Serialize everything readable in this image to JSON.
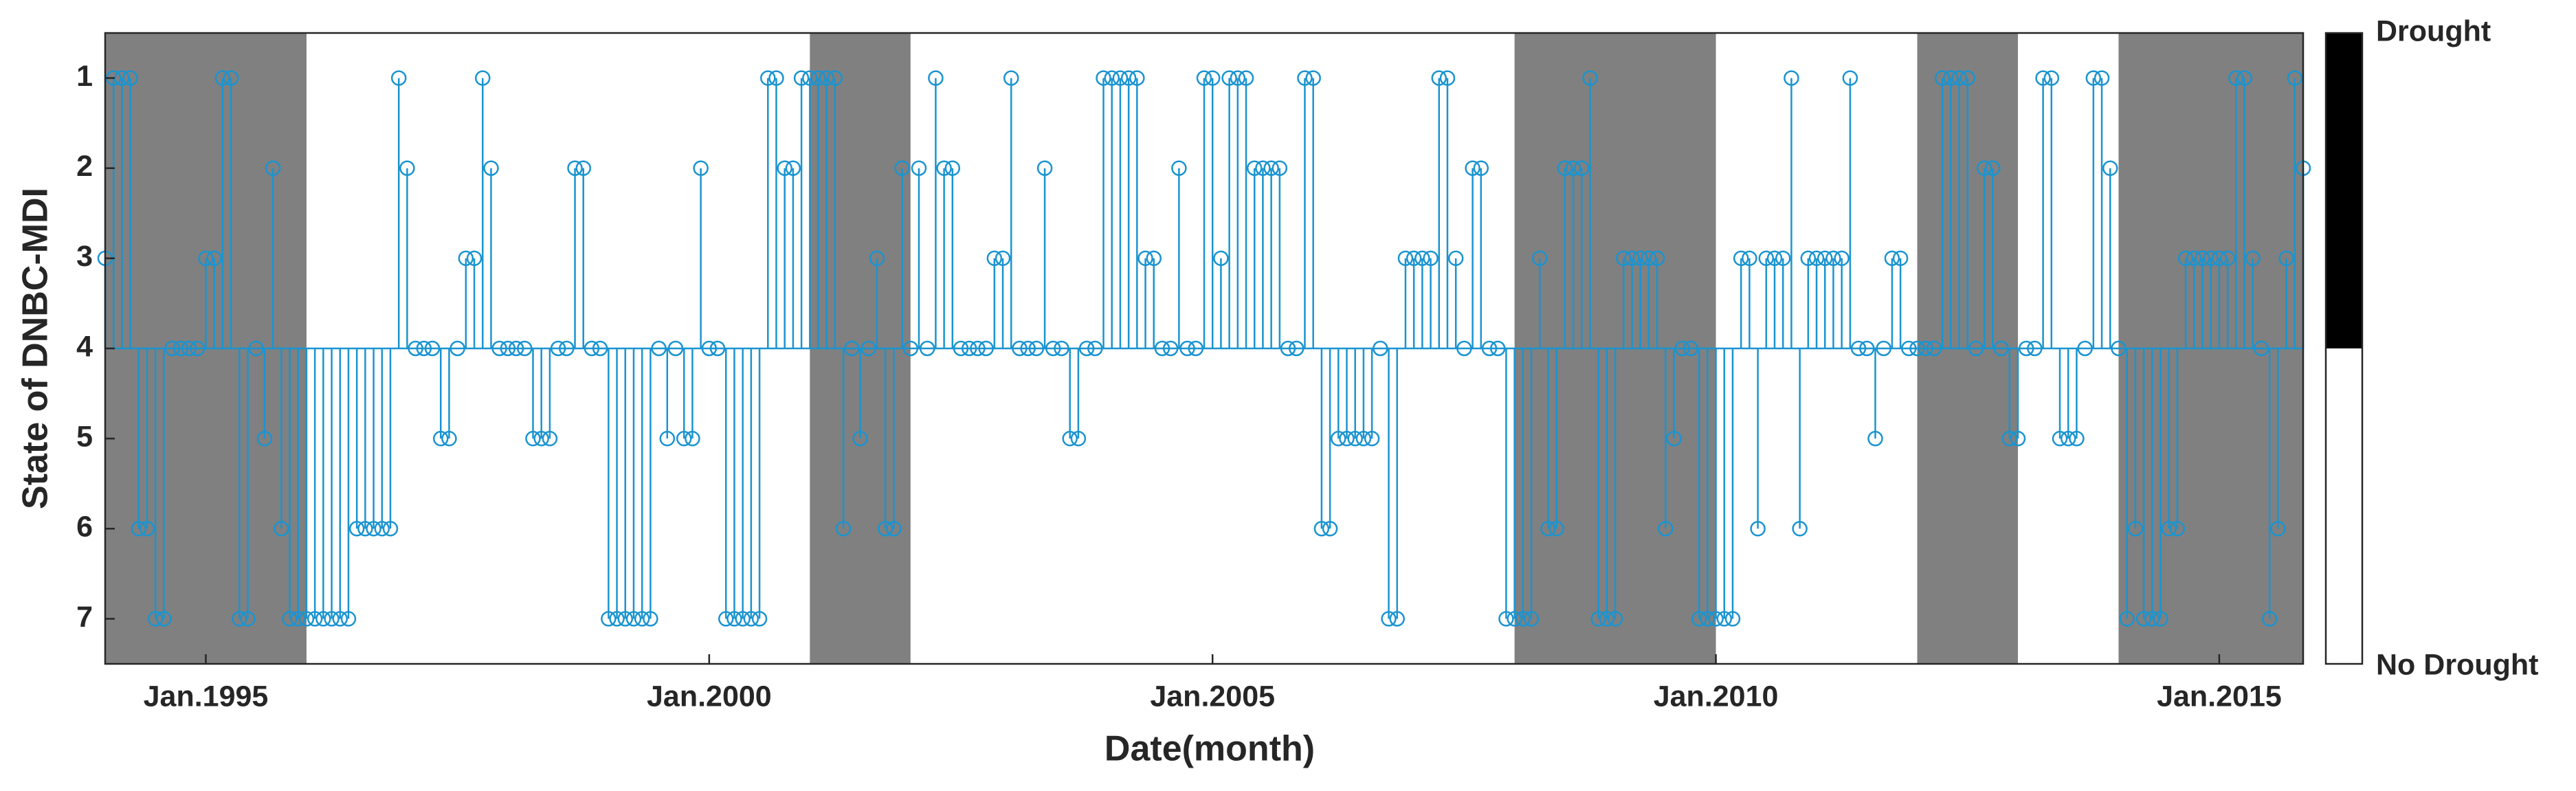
{
  "chart_data": {
    "type": "stem",
    "xlabel": "Date(month)",
    "ylabel": "State of DNBC-MDI",
    "xlim": [
      "1994-01",
      "2015-11"
    ],
    "xticks": [
      {
        "value": "1995-01",
        "label": "Jan.1995"
      },
      {
        "value": "2000-01",
        "label": "Jan.2000"
      },
      {
        "value": "2005-01",
        "label": "Jan.2005"
      },
      {
        "value": "2010-01",
        "label": "Jan.2010"
      },
      {
        "value": "2015-01",
        "label": "Jan.2015"
      }
    ],
    "ylim": [
      0.5,
      7.5
    ],
    "y_reversed": true,
    "yticks": [
      1,
      2,
      3,
      4,
      5,
      6,
      7
    ],
    "baseline": 4,
    "color": "#1a94d0",
    "drought_periods": [
      [
        "1994-01",
        "1996-01"
      ],
      [
        "2001-01",
        "2002-01"
      ],
      [
        "2008-01",
        "2010-01"
      ],
      [
        "2012-01",
        "2013-01"
      ],
      [
        "2014-01",
        "2016-01"
      ]
    ],
    "drought_color": "#808080",
    "colorbar": {
      "labels": [
        "Drought",
        "No Drought"
      ],
      "colors": [
        "#000000",
        "#ffffff"
      ],
      "split": 4
    },
    "x": [
      "1994-01",
      "1994-02",
      "1994-03",
      "1994-04",
      "1994-05",
      "1994-06",
      "1994-07",
      "1994-08",
      "1994-09",
      "1994-10",
      "1994-11",
      "1994-12",
      "1995-01",
      "1995-02",
      "1995-03",
      "1995-04",
      "1995-05",
      "1995-06",
      "1995-07",
      "1995-08",
      "1995-09",
      "1995-10",
      "1995-11",
      "1995-12",
      "1996-01",
      "1996-02",
      "1996-03",
      "1996-04",
      "1996-05",
      "1996-06",
      "1996-07",
      "1996-08",
      "1996-09",
      "1996-10",
      "1996-11",
      "1996-12",
      "1997-01",
      "1997-02",
      "1997-03",
      "1997-04",
      "1997-05",
      "1997-06",
      "1997-07",
      "1997-08",
      "1997-09",
      "1997-10",
      "1997-11",
      "1997-12",
      "1998-01",
      "1998-02",
      "1998-03",
      "1998-04",
      "1998-05",
      "1998-06",
      "1998-07",
      "1998-08",
      "1998-09",
      "1998-10",
      "1998-11",
      "1998-12",
      "1999-01",
      "1999-02",
      "1999-03",
      "1999-04",
      "1999-05",
      "1999-06",
      "1999-07",
      "1999-08",
      "1999-09",
      "1999-10",
      "1999-11",
      "1999-12",
      "2000-01",
      "2000-02",
      "2000-03",
      "2000-04",
      "2000-05",
      "2000-06",
      "2000-07",
      "2000-08",
      "2000-09",
      "2000-10",
      "2000-11",
      "2000-12",
      "2001-01",
      "2001-02",
      "2001-03",
      "2001-04",
      "2001-05",
      "2001-06",
      "2001-07",
      "2001-08",
      "2001-09",
      "2001-10",
      "2001-11",
      "2001-12",
      "2002-01",
      "2002-02",
      "2002-03",
      "2002-04",
      "2002-05",
      "2002-06",
      "2002-07",
      "2002-08",
      "2002-09",
      "2002-10",
      "2002-11",
      "2002-12",
      "2003-01",
      "2003-02",
      "2003-03",
      "2003-04",
      "2003-05",
      "2003-06",
      "2003-07",
      "2003-08",
      "2003-09",
      "2003-10",
      "2003-11",
      "2003-12",
      "2004-01",
      "2004-02",
      "2004-03",
      "2004-04",
      "2004-05",
      "2004-06",
      "2004-07",
      "2004-08",
      "2004-09",
      "2004-10",
      "2004-11",
      "2004-12",
      "2005-01",
      "2005-02",
      "2005-03",
      "2005-04",
      "2005-05",
      "2005-06",
      "2005-07",
      "2005-08",
      "2005-09",
      "2005-10",
      "2005-11",
      "2005-12",
      "2006-01",
      "2006-02",
      "2006-03",
      "2006-04",
      "2006-05",
      "2006-06",
      "2006-07",
      "2006-08",
      "2006-09",
      "2006-10",
      "2006-11",
      "2006-12",
      "2007-01",
      "2007-02",
      "2007-03",
      "2007-04",
      "2007-05",
      "2007-06",
      "2007-07",
      "2007-08",
      "2007-09",
      "2007-10",
      "2007-11",
      "2007-12",
      "2008-01",
      "2008-02",
      "2008-03",
      "2008-04",
      "2008-05",
      "2008-06",
      "2008-07",
      "2008-08",
      "2008-09",
      "2008-10",
      "2008-11",
      "2008-12",
      "2009-01",
      "2009-02",
      "2009-03",
      "2009-04",
      "2009-05",
      "2009-06",
      "2009-07",
      "2009-08",
      "2009-09",
      "2009-10",
      "2009-11",
      "2009-12",
      "2010-01",
      "2010-02",
      "2010-03",
      "2010-04",
      "2010-05",
      "2010-06",
      "2010-07",
      "2010-08",
      "2010-09",
      "2010-10",
      "2010-11",
      "2010-12",
      "2011-01",
      "2011-02",
      "2011-03",
      "2011-04",
      "2011-05",
      "2011-06",
      "2011-07",
      "2011-08",
      "2011-09",
      "2011-10",
      "2011-11",
      "2011-12",
      "2012-01",
      "2012-02",
      "2012-03",
      "2012-04",
      "2012-05",
      "2012-06",
      "2012-07",
      "2012-08",
      "2012-09",
      "2012-10",
      "2012-11",
      "2012-12",
      "2013-01",
      "2013-02",
      "2013-03",
      "2013-04",
      "2013-05",
      "2013-06",
      "2013-07",
      "2013-08",
      "2013-09",
      "2013-10",
      "2013-11",
      "2013-12",
      "2014-01",
      "2014-02",
      "2014-03",
      "2014-04",
      "2014-05",
      "2014-06",
      "2014-07",
      "2014-08",
      "2014-09",
      "2014-10",
      "2014-11",
      "2014-12",
      "2015-01",
      "2015-02",
      "2015-03",
      "2015-04",
      "2015-05",
      "2015-06",
      "2015-07",
      "2015-08",
      "2015-09",
      "2015-10",
      "2015-11"
    ],
    "values": [
      3,
      1,
      1,
      1,
      6,
      6,
      7,
      7,
      4,
      4,
      4,
      4,
      3,
      3,
      1,
      1,
      7,
      7,
      4,
      5,
      2,
      6,
      7,
      7,
      7,
      7,
      7,
      7,
      7,
      7,
      6,
      6,
      6,
      6,
      6,
      1,
      2,
      4,
      4,
      4,
      5,
      5,
      4,
      3,
      3,
      1,
      2,
      4,
      4,
      4,
      4,
      5,
      5,
      5,
      4,
      4,
      2,
      2,
      4,
      4,
      7,
      7,
      7,
      7,
      7,
      7,
      4,
      5,
      4,
      5,
      5,
      2,
      4,
      4,
      7,
      7,
      7,
      7,
      7,
      1,
      1,
      2,
      2,
      1,
      1,
      1,
      1,
      1,
      6,
      4,
      5,
      4,
      3,
      6,
      6,
      2,
      4,
      2,
      4,
      1,
      2,
      2,
      4,
      4,
      4,
      4,
      3,
      3,
      1,
      4,
      4,
      4,
      2,
      4,
      4,
      5,
      5,
      4,
      4,
      1,
      1,
      1,
      1,
      1,
      3,
      3,
      4,
      4,
      2,
      4,
      4,
      1,
      1,
      3,
      1,
      1,
      1,
      2,
      2,
      2,
      2,
      4,
      4,
      1,
      1,
      6,
      6,
      5,
      5,
      5,
      5,
      5,
      4,
      7,
      7,
      3,
      3,
      3,
      3,
      1,
      1,
      3,
      4,
      2,
      2,
      4,
      4,
      7,
      7,
      7,
      7,
      3,
      6,
      6,
      2,
      2,
      2,
      1,
      7,
      7,
      7,
      3,
      3,
      3,
      3,
      3,
      6,
      5,
      4,
      4,
      7,
      7,
      7,
      7,
      7,
      3,
      3,
      6,
      3,
      3,
      3,
      1,
      6,
      3,
      3,
      3,
      3,
      3,
      1,
      4,
      4,
      5,
      4,
      3,
      3,
      4,
      4,
      4,
      4,
      1,
      1,
      1,
      1,
      4,
      2,
      2,
      4,
      5,
      5,
      4,
      4,
      1,
      1,
      5,
      5,
      5,
      4,
      1,
      1,
      2,
      4,
      7,
      6,
      7,
      7,
      7,
      6,
      6,
      3,
      3,
      3,
      3,
      3,
      3,
      1,
      1,
      3,
      4,
      7,
      6,
      3,
      1,
      2
    ]
  }
}
